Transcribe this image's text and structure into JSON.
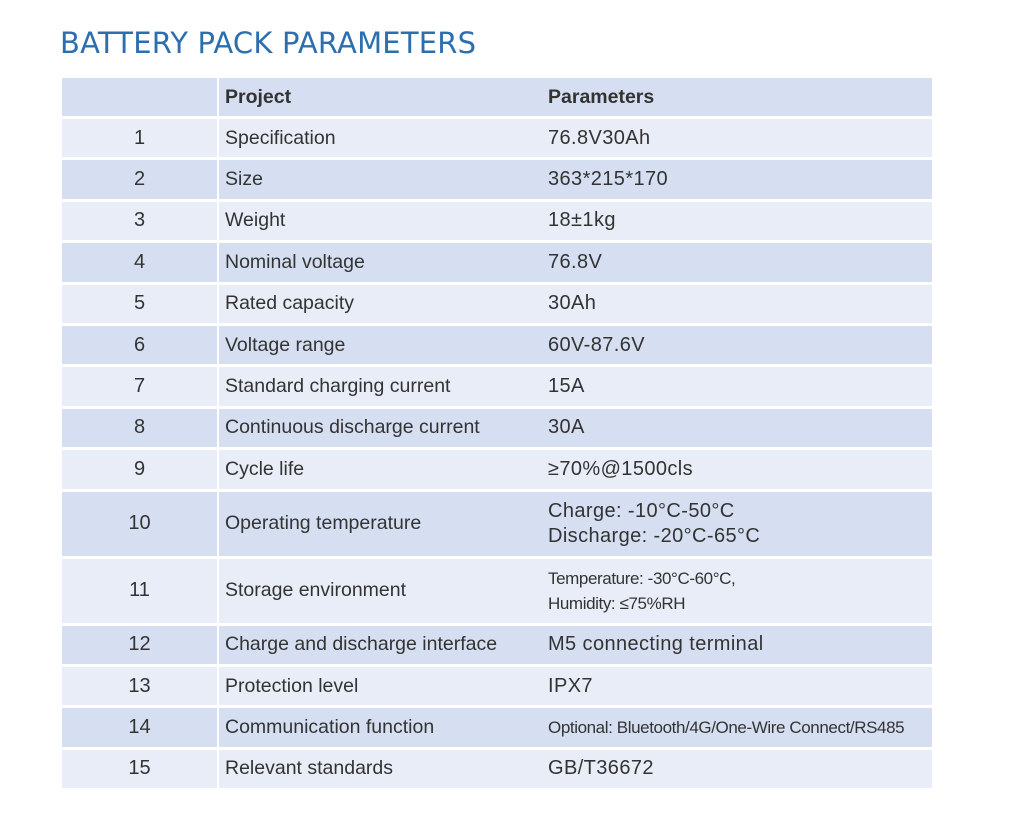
{
  "title": "BATTERY PACK PARAMETERS",
  "table": {
    "headers": {
      "index": "",
      "project": "Project",
      "parameters": "Parameters"
    },
    "rows": [
      {
        "index": "1",
        "project": "Specification",
        "parameters": [
          "76.8V30Ah"
        ]
      },
      {
        "index": "2",
        "project": "Size",
        "parameters": [
          "363*215*170"
        ]
      },
      {
        "index": "3",
        "project": "Weight",
        "parameters": [
          "18±1kg"
        ]
      },
      {
        "index": "4",
        "project": "Nominal voltage",
        "parameters": [
          "76.8V"
        ]
      },
      {
        "index": "5",
        "project": "Rated capacity",
        "parameters": [
          "30Ah"
        ]
      },
      {
        "index": "6",
        "project": "Voltage range",
        "parameters": [
          "60V-87.6V"
        ]
      },
      {
        "index": "7",
        "project": "Standard charging current",
        "parameters": [
          "15A"
        ]
      },
      {
        "index": "8",
        "project": "Continuous discharge current",
        "parameters": [
          "30A"
        ]
      },
      {
        "index": "9",
        "project": "Cycle life",
        "parameters": [
          "≥70%@1500cls"
        ]
      },
      {
        "index": "10",
        "project": "Operating temperature",
        "parameters": [
          "Charge: -10°C-50°C",
          "Discharge: -20°C-65°C"
        ]
      },
      {
        "index": "11",
        "project": "Storage environment",
        "parameters": [
          "Temperature:  -30°C-60°C,",
          "Humidity: ≤75%RH"
        ]
      },
      {
        "index": "12",
        "project": "Charge and discharge interface",
        "parameters": [
          "M5 connecting terminal"
        ]
      },
      {
        "index": "13",
        "project": "Protection level",
        "parameters": [
          "IPX7"
        ]
      },
      {
        "index": "14",
        "project": "Communication function",
        "parameters": [
          "Optional: Bluetooth/4G/One-Wire Connect/RS485"
        ]
      },
      {
        "index": "15",
        "project": "Relevant standards",
        "parameters": [
          "GB/T36672"
        ]
      }
    ]
  },
  "colors": {
    "title": "#2d6eaf",
    "row_light": "#e8edf7",
    "row_dark": "#d5dff1",
    "text": "#333333"
  }
}
